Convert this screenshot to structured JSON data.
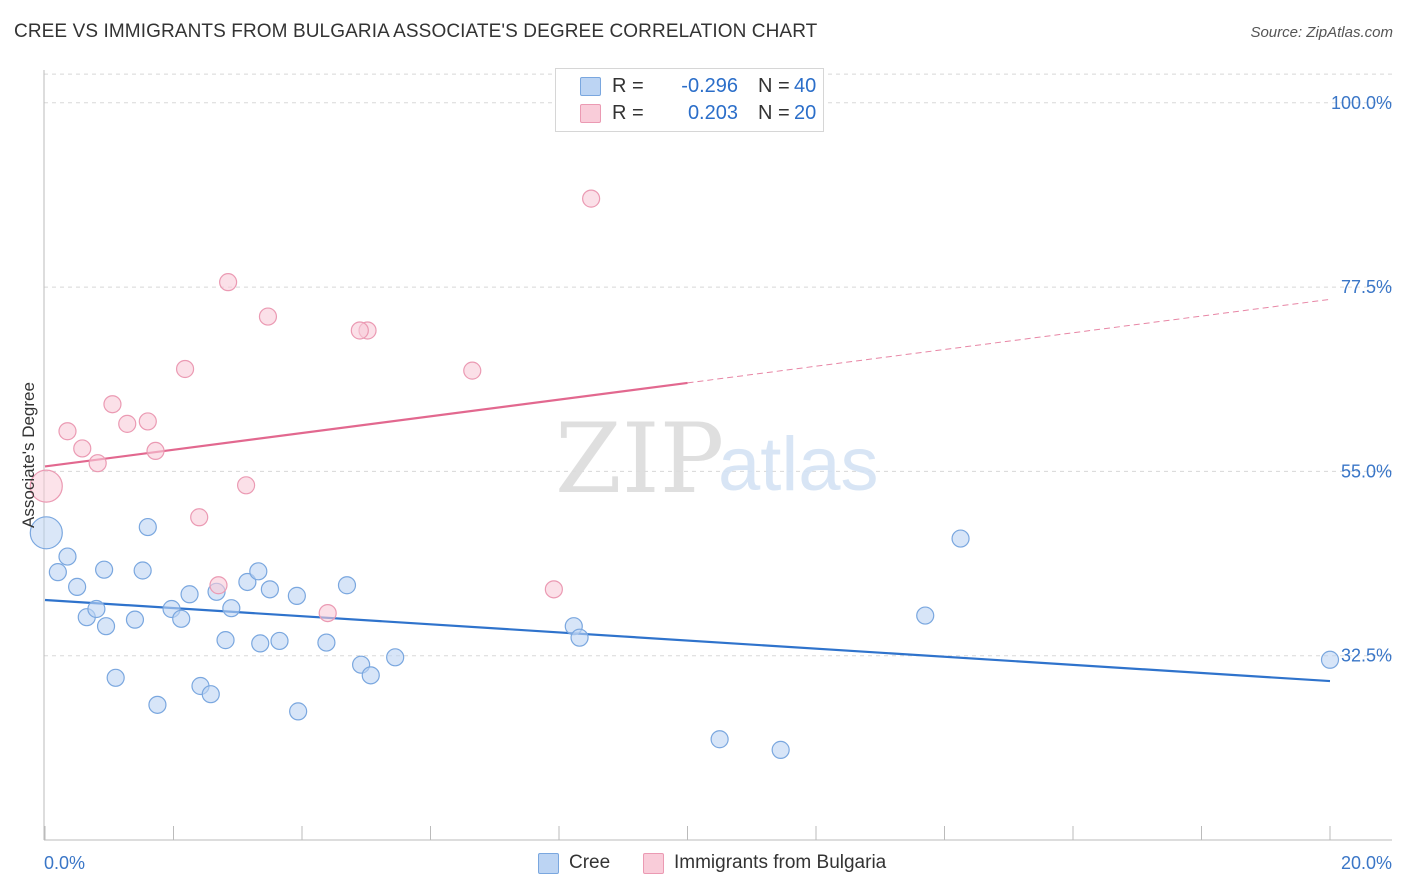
{
  "header": {
    "title": "CREE VS IMMIGRANTS FROM BULGARIA ASSOCIATE'S DEGREE CORRELATION CHART",
    "source": "Source: ZipAtlas.com"
  },
  "watermark": {
    "zip": "ZIP",
    "atlas": "atlas"
  },
  "legend": {
    "cree": {
      "r_label": "R =",
      "r_value": "-0.296",
      "n_label": "N =",
      "n_value": "40",
      "name": "Cree"
    },
    "bulgaria": {
      "r_label": "R =",
      "r_value": "0.203",
      "n_label": "N =",
      "n_value": "20",
      "name": "Immigrants from Bulgaria"
    }
  },
  "colors": {
    "cree_fill": "#bcd4f3",
    "cree_stroke": "#7aa7df",
    "cree_line": "#2f73cc",
    "bulgaria_fill": "#f9ccd9",
    "bulgaria_stroke": "#eb9ab3",
    "bulgaria_line": "#e2688f",
    "tick_label": "#3a76c7",
    "grid": "#d8d8d8"
  },
  "chart_data": {
    "type": "scatter",
    "title": "CREE VS IMMIGRANTS FROM BULGARIA ASSOCIATE'S DEGREE CORRELATION CHART",
    "xlabel": "",
    "ylabel": "Associate's Degree",
    "xlim": [
      0,
      20
    ],
    "ylim": [
      10,
      104
    ],
    "x_tick_labels": [
      "0.0%",
      "20.0%"
    ],
    "y_ticks": [
      32.5,
      55.0,
      77.5,
      100.0
    ],
    "y_tick_labels": [
      "32.5%",
      "55.0%",
      "77.5%",
      "100.0%"
    ],
    "grid": true,
    "legend_position": "top-center",
    "series": [
      {
        "name": "Cree",
        "r": -0.296,
        "n": 40,
        "trend": {
          "x": [
            0,
            20
          ],
          "y": [
            39.3,
            29.4
          ]
        },
        "points": [
          {
            "x": 0.02,
            "y": 47.5,
            "big": true
          },
          {
            "x": 0.2,
            "y": 42.7
          },
          {
            "x": 0.35,
            "y": 44.6
          },
          {
            "x": 0.5,
            "y": 40.9
          },
          {
            "x": 0.65,
            "y": 37.2
          },
          {
            "x": 0.8,
            "y": 38.2
          },
          {
            "x": 0.95,
            "y": 36.1
          },
          {
            "x": 1.1,
            "y": 29.8
          },
          {
            "x": 0.92,
            "y": 43.0
          },
          {
            "x": 1.4,
            "y": 36.9
          },
          {
            "x": 1.52,
            "y": 42.9
          },
          {
            "x": 1.6,
            "y": 48.2
          },
          {
            "x": 1.75,
            "y": 26.5
          },
          {
            "x": 1.97,
            "y": 38.2
          },
          {
            "x": 2.12,
            "y": 37.0
          },
          {
            "x": 2.25,
            "y": 40.0
          },
          {
            "x": 2.42,
            "y": 28.8
          },
          {
            "x": 2.58,
            "y": 27.8
          },
          {
            "x": 2.67,
            "y": 40.3
          },
          {
            "x": 2.81,
            "y": 34.4
          },
          {
            "x": 2.9,
            "y": 38.3
          },
          {
            "x": 3.15,
            "y": 41.5
          },
          {
            "x": 3.32,
            "y": 42.8
          },
          {
            "x": 3.35,
            "y": 34.0
          },
          {
            "x": 3.5,
            "y": 40.6
          },
          {
            "x": 3.65,
            "y": 34.3
          },
          {
            "x": 3.92,
            "y": 39.8
          },
          {
            "x": 3.94,
            "y": 25.7
          },
          {
            "x": 4.38,
            "y": 34.1
          },
          {
            "x": 4.7,
            "y": 41.1
          },
          {
            "x": 4.92,
            "y": 31.4
          },
          {
            "x": 5.07,
            "y": 30.1
          },
          {
            "x": 5.45,
            "y": 32.3
          },
          {
            "x": 8.23,
            "y": 36.1
          },
          {
            "x": 8.32,
            "y": 34.7
          },
          {
            "x": 10.5,
            "y": 22.3
          },
          {
            "x": 11.45,
            "y": 21.0
          },
          {
            "x": 13.7,
            "y": 37.4
          },
          {
            "x": 14.25,
            "y": 46.8
          },
          {
            "x": 20.0,
            "y": 32.0
          }
        ]
      },
      {
        "name": "Immigrants from Bulgaria",
        "r": 0.203,
        "n": 20,
        "trend": {
          "x": [
            0,
            20
          ],
          "y": [
            55.6,
            76.0
          ],
          "solid_until_x": 10.0
        },
        "points": [
          {
            "x": 0.02,
            "y": 53.2,
            "big": true
          },
          {
            "x": 0.35,
            "y": 59.9
          },
          {
            "x": 0.58,
            "y": 57.8
          },
          {
            "x": 0.82,
            "y": 56.0
          },
          {
            "x": 1.05,
            "y": 63.2
          },
          {
            "x": 1.28,
            "y": 60.8
          },
          {
            "x": 1.6,
            "y": 61.1
          },
          {
            "x": 1.72,
            "y": 57.5
          },
          {
            "x": 2.18,
            "y": 67.5
          },
          {
            "x": 2.4,
            "y": 49.4
          },
          {
            "x": 2.7,
            "y": 41.1
          },
          {
            "x": 2.85,
            "y": 78.1
          },
          {
            "x": 3.13,
            "y": 53.3
          },
          {
            "x": 3.47,
            "y": 73.9
          },
          {
            "x": 4.4,
            "y": 37.7
          },
          {
            "x": 5.02,
            "y": 72.2
          },
          {
            "x": 4.9,
            "y": 72.2
          },
          {
            "x": 6.65,
            "y": 67.3
          },
          {
            "x": 7.92,
            "y": 40.6
          },
          {
            "x": 8.5,
            "y": 88.3
          }
        ]
      }
    ]
  }
}
